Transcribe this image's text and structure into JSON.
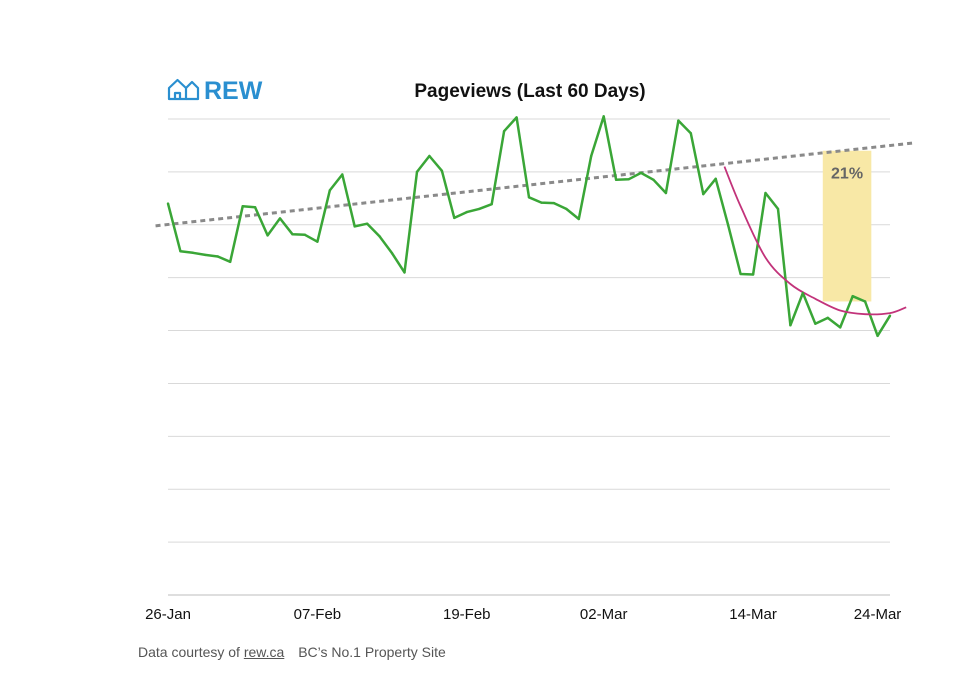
{
  "brand": {
    "logo_text": "REW",
    "color": "#2a8fd0"
  },
  "footer": {
    "prefix": "Data courtesy of",
    "link": "rew.ca",
    "tagline": "BC’s No.1 Property Site"
  },
  "chart_data": {
    "type": "line",
    "title": "Pageviews (Last 60 Days)",
    "xlabel": "",
    "ylabel": "",
    "x_tick_labels": [
      "26-Jan",
      "07-Feb",
      "19-Feb",
      "02-Mar",
      "14-Mar",
      "24-Mar"
    ],
    "x_tick_days": [
      0,
      12,
      24,
      35,
      47,
      57
    ],
    "ylim": [
      0,
      9
    ],
    "gridlines": 9,
    "series": [
      {
        "name": "Pageviews",
        "color": "#3aa637",
        "values": [
          7.4,
          6.5,
          6.47,
          6.43,
          6.4,
          6.3,
          7.35,
          7.33,
          6.8,
          7.12,
          6.82,
          6.81,
          6.68,
          7.65,
          7.95,
          6.97,
          7.02,
          6.78,
          6.46,
          6.1,
          8.0,
          8.3,
          8.02,
          7.13,
          7.24,
          7.3,
          7.39,
          8.77,
          9.03,
          7.52,
          7.42,
          7.41,
          7.3,
          7.11,
          8.3,
          9.05,
          7.85,
          7.86,
          7.98,
          7.85,
          7.6,
          8.97,
          8.73,
          7.58,
          7.87,
          6.99,
          6.07,
          6.06,
          7.6,
          7.3,
          5.1,
          5.71,
          5.13,
          5.24,
          5.06,
          5.65,
          5.55,
          4.9,
          5.28
        ]
      }
    ],
    "trend_line": {
      "name": "Linear trend",
      "color": "#8a8a8a",
      "start": [
        -1,
        6.98
      ],
      "end": [
        60,
        8.55
      ]
    },
    "recent_trend": {
      "name": "Recent trend",
      "color": "#c2337a",
      "points": [
        [
          44.7,
          8.1
        ],
        [
          46,
          7.35
        ],
        [
          48,
          6.38
        ],
        [
          50,
          5.88
        ],
        [
          52,
          5.6
        ],
        [
          54,
          5.38
        ],
        [
          56,
          5.31
        ],
        [
          58,
          5.33
        ],
        [
          59.3,
          5.44
        ]
      ]
    },
    "annotation": {
      "label": "21%",
      "x_range": [
        52.6,
        56.5
      ],
      "y_range": [
        5.55,
        8.4
      ],
      "color": "#f8e8a6"
    }
  }
}
